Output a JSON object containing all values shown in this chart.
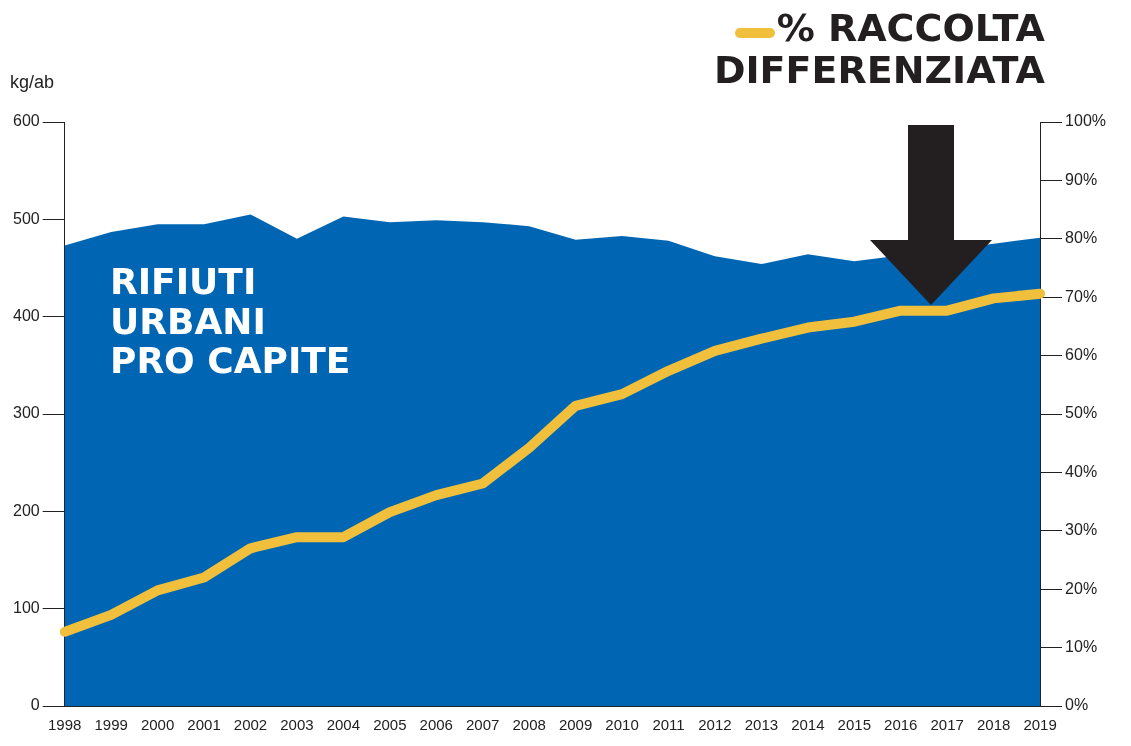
{
  "chart_data": {
    "type": "area",
    "ylabel": "kg/ab",
    "categories": [
      "1998",
      "1999",
      "2000",
      "2001",
      "2002",
      "2003",
      "2004",
      "2005",
      "2006",
      "2007",
      "2008",
      "2009",
      "2010",
      "2011",
      "2012",
      "2013",
      "2014",
      "2015",
      "2016",
      "2017",
      "2018",
      "2019"
    ],
    "series": [
      {
        "name": "RIFIUTI URBANI PRO CAPITE",
        "color": "#0066b3",
        "values": [
          473,
          487,
          495,
          495,
          505,
          480,
          503,
          497,
          499,
          497,
          493,
          479,
          483,
          478,
          462,
          454,
          464,
          457,
          null,
          null,
          475,
          481
        ]
      },
      {
        "name": "% RACCOLTA DIFFERENZIATA",
        "type": "line",
        "axis": "y2",
        "color": "#f0bf3c",
        "values": [
          12.7,
          15.6,
          19.8,
          22,
          27,
          28.9,
          28.9,
          33.2,
          36.1,
          38.1,
          44.2,
          51.4,
          53.4,
          57.4,
          60.8,
          62.9,
          64.8,
          65.8,
          67.7,
          67.7,
          69.8,
          70.6
        ]
      }
    ],
    "ylim": [
      0,
      600
    ],
    "yticks": [
      0,
      100,
      200,
      300,
      400,
      500,
      600
    ],
    "y2lim": [
      0,
      100
    ],
    "y2ticks": [
      {
        "value": 0,
        "label": "0%"
      },
      {
        "value": 10,
        "label": "10%"
      },
      {
        "value": 20,
        "label": "20%"
      },
      {
        "value": 30,
        "label": "30%"
      },
      {
        "value": 40,
        "label": "40%"
      },
      {
        "value": 50,
        "label": "50%"
      },
      {
        "value": 60,
        "label": "60%"
      },
      {
        "value": 70,
        "label": "70%"
      },
      {
        "value": 80,
        "label": "80%"
      },
      {
        "value": 90,
        "label": "90%"
      },
      {
        "value": 100,
        "label": "100%"
      }
    ],
    "grid": false,
    "legend": "top right",
    "marker": "none",
    "line_style": "solid"
  }
}
